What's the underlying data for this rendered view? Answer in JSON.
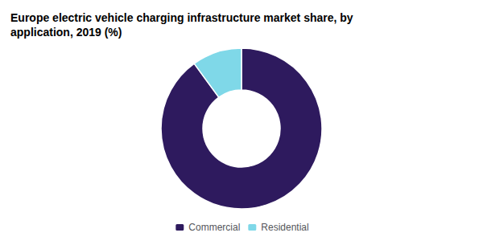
{
  "chart_data": {
    "type": "donut",
    "title": "Europe electric vehicle charging infrastructure market share, by\napplication, 2019 (%)",
    "categories": [
      "Commercial",
      "Residential"
    ],
    "values": [
      90,
      10
    ],
    "colors": [
      "#2e1a5e",
      "#7fd8e8"
    ],
    "legend": "bottom"
  }
}
